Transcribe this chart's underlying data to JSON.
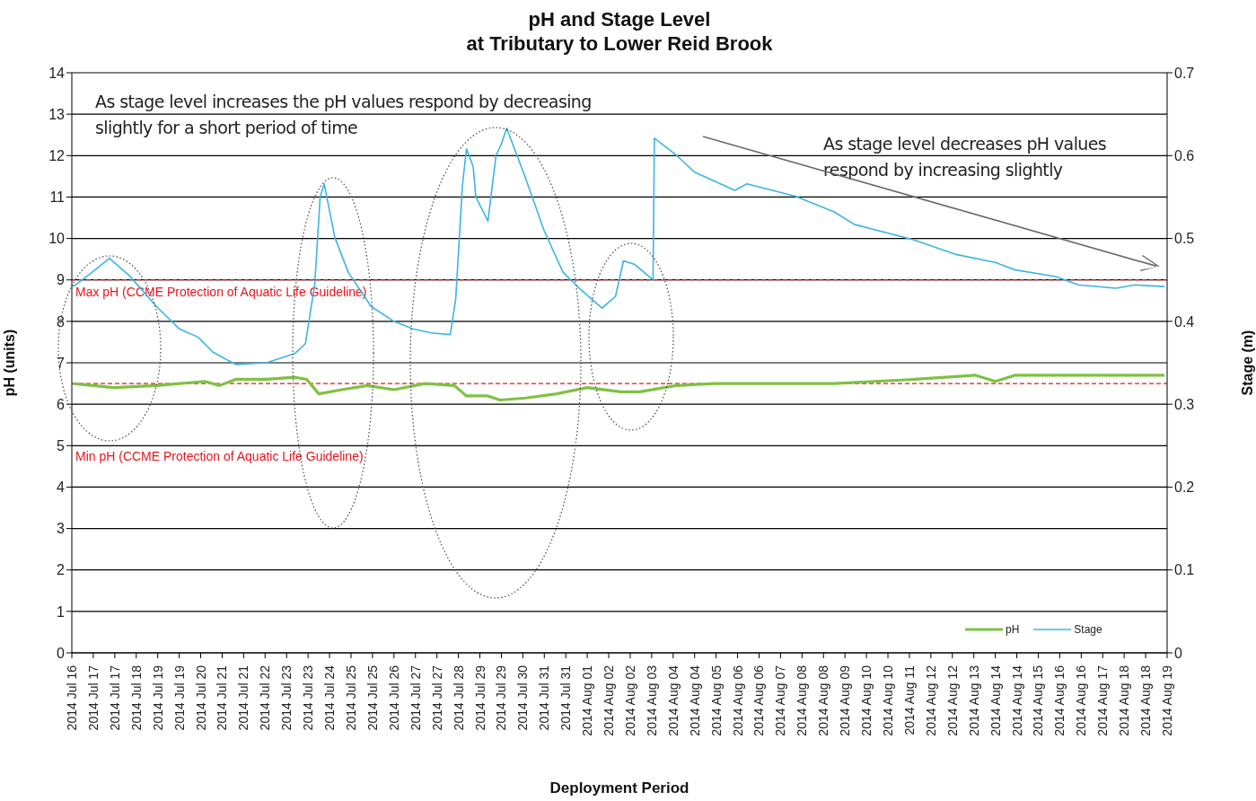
{
  "chart_data": {
    "type": "line",
    "title": "pH and Stage Level\nat Tributary to Lower Reid Brook",
    "xlabel": "Deployment Period",
    "ylabel": "pH (units)",
    "y2label": "Stage (m)",
    "annotations": [
      "As stage level increases the pH values respond by decreasing slightly for a short period of time",
      "As stage level decreases pH values respond by increasing slightly"
    ],
    "series": [
      {
        "name": "pH",
        "color": "#7dc242",
        "x": [
          "2014-07-16T13:00",
          "2014-07-17T19:00",
          "2014-07-19T03:00",
          "2014-07-20T15:00",
          "2014-07-21T02:00",
          "2014-07-21T14:00",
          "2014-07-22T13:00",
          "2014-07-23T10:00",
          "2014-07-23T19:00",
          "2014-07-24T04:00",
          "2014-07-24T21:00",
          "2014-07-25T16:00",
          "2014-07-26T12:00",
          "2014-07-27T11:00",
          "2014-07-28T09:00",
          "2014-07-28T18:00",
          "2014-07-29T10:00",
          "2014-07-29T19:00",
          "2014-07-30T14:00",
          "2014-07-31T13:00",
          "2014-08-01T12:00",
          "2014-08-02T13:00",
          "2014-08-03T03:00",
          "2014-08-04T06:00",
          "2014-08-05T11:00",
          "2014-08-07T08:00",
          "2014-08-09T04:00",
          "2014-08-10T10:00",
          "2014-08-11T16:00",
          "2014-08-13T13:00",
          "2014-08-14T04:00",
          "2014-08-14T19:00",
          "2014-08-16T16:00",
          "2014-08-17T22:00",
          "2014-08-19T10:00"
        ],
        "values": [
          6.5,
          6.4,
          6.45,
          6.55,
          6.45,
          6.6,
          6.6,
          6.65,
          6.6,
          6.25,
          6.35,
          6.45,
          6.35,
          6.5,
          6.45,
          6.2,
          6.2,
          6.1,
          6.15,
          6.25,
          6.4,
          6.3,
          6.3,
          6.45,
          6.5,
          6.5,
          6.5,
          6.55,
          6.6,
          6.7,
          6.55,
          6.7,
          6.7,
          6.7,
          6.7
        ]
      },
      {
        "name": "Stage",
        "color": "#3bb5e3",
        "axis": "y2",
        "x": [
          "2014-07-16T12:00",
          "2014-07-16T14:00",
          "2014-07-17T03:00",
          "2014-07-17T16:00",
          "2014-07-18T07:00",
          "2014-07-19T03:00",
          "2014-07-19T20:00",
          "2014-07-20T10:00",
          "2014-07-20T21:00",
          "2014-07-21T14:00",
          "2014-07-22T13:00",
          "2014-07-23T10:00",
          "2014-07-23T18:00",
          "2014-07-24T01:00",
          "2014-07-24T05:00",
          "2014-07-24T08:00",
          "2014-07-24T16:00",
          "2014-07-25T02:00",
          "2014-07-25T19:00",
          "2014-07-26T12:00",
          "2014-07-27T02:00",
          "2014-07-27T16:00",
          "2014-07-28T06:00",
          "2014-07-28T10:00",
          "2014-07-28T15:00",
          "2014-07-28T18:00",
          "2014-07-28T23:00",
          "2014-07-29T01:00",
          "2014-07-29T10:00",
          "2014-07-29T16:00",
          "2014-07-29T20:00",
          "2014-07-30T00:00",
          "2014-07-30T14:00",
          "2014-07-31T04:00",
          "2014-07-31T18:00",
          "2014-08-01T08:00",
          "2014-08-01T23:00",
          "2014-08-02T09:00",
          "2014-08-02T15:00",
          "2014-08-02T23:00",
          "2014-08-03T13:00",
          "2014-08-03T14:00",
          "2014-08-04T06:00",
          "2014-08-04T20:00",
          "2014-08-06T02:00",
          "2014-08-06T11:00",
          "2014-08-07T23:00",
          "2014-08-09T04:00",
          "2014-08-09T19:00",
          "2014-08-11T16:00",
          "2014-08-12T22:00",
          "2014-08-14T04:00",
          "2014-08-14T19:00",
          "2014-08-16T01:00",
          "2014-08-16T18:00",
          "2014-08-17T22:00",
          "2014-08-18T12:00",
          "2014-08-19T10:00"
        ],
        "values": [
          0.443,
          0.443,
          0.459,
          0.476,
          0.455,
          0.418,
          0.391,
          0.381,
          0.363,
          0.348,
          0.35,
          0.361,
          0.373,
          0.445,
          0.55,
          0.566,
          0.501,
          0.459,
          0.418,
          0.4,
          0.391,
          0.386,
          0.384,
          0.427,
          0.564,
          0.608,
          0.587,
          0.55,
          0.521,
          0.6,
          0.614,
          0.633,
          0.573,
          0.509,
          0.459,
          0.437,
          0.416,
          0.43,
          0.473,
          0.469,
          0.45,
          0.621,
          0.601,
          0.58,
          0.558,
          0.566,
          0.551,
          0.532,
          0.517,
          0.498,
          0.481,
          0.471,
          0.462,
          0.454,
          0.444,
          0.44,
          0.444,
          0.442
        ]
      }
    ],
    "ylim": [
      0,
      14
    ],
    "yticks": [
      0,
      1,
      2,
      3,
      4,
      5,
      6,
      7,
      8,
      9,
      10,
      11,
      12,
      13,
      14
    ],
    "y2lim": [
      0,
      0.7
    ],
    "y2ticks": [
      0,
      0.1,
      0.2,
      0.3,
      0.4,
      0.5,
      0.6,
      0.7
    ],
    "xlim": [
      "2014-07-16T12:00",
      "2014-08-19T12:00"
    ],
    "xticks": [
      {
        "value": "2014-07-16T12:00",
        "label": "2014 Jul 16"
      },
      {
        "value": "2014-07-17T04:00",
        "label": "2014 Jul 17"
      },
      {
        "value": "2014-07-17T20:00",
        "label": "2014 Jul 17"
      },
      {
        "value": "2014-07-18T12:00",
        "label": "2014 Jul 18"
      },
      {
        "value": "2014-07-19T04:00",
        "label": "2014 Jul 19"
      },
      {
        "value": "2014-07-19T20:00",
        "label": "2014 Jul 19"
      },
      {
        "value": "2014-07-20T12:00",
        "label": "2014 Jul 20"
      },
      {
        "value": "2014-07-21T04:00",
        "label": "2014 Jul 21"
      },
      {
        "value": "2014-07-21T20:00",
        "label": "2014 Jul 21"
      },
      {
        "value": "2014-07-22T12:00",
        "label": "2014 Jul 22"
      },
      {
        "value": "2014-07-23T04:00",
        "label": "2014 Jul 23"
      },
      {
        "value": "2014-07-23T20:00",
        "label": "2014 Jul 23"
      },
      {
        "value": "2014-07-24T12:00",
        "label": "2014 Jul 24"
      },
      {
        "value": "2014-07-25T04:00",
        "label": "2014 Jul 25"
      },
      {
        "value": "2014-07-25T20:00",
        "label": "2014 Jul 25"
      },
      {
        "value": "2014-07-26T12:00",
        "label": "2014 Jul 26"
      },
      {
        "value": "2014-07-27T04:00",
        "label": "2014 Jul 27"
      },
      {
        "value": "2014-07-27T20:00",
        "label": "2014 Jul 27"
      },
      {
        "value": "2014-07-28T12:00",
        "label": "2014 Jul 28"
      },
      {
        "value": "2014-07-29T04:00",
        "label": "2014 Jul 29"
      },
      {
        "value": "2014-07-29T20:00",
        "label": "2014 Jul 29"
      },
      {
        "value": "2014-07-30T12:00",
        "label": "2014 Jul 30"
      },
      {
        "value": "2014-07-31T04:00",
        "label": "2014 Jul 31"
      },
      {
        "value": "2014-07-31T20:00",
        "label": "2014 Jul 31"
      },
      {
        "value": "2014-08-01T12:00",
        "label": "2014 Aug 01"
      },
      {
        "value": "2014-08-02T04:00",
        "label": "2014 Aug 02"
      },
      {
        "value": "2014-08-02T20:00",
        "label": "2014 Aug 02"
      },
      {
        "value": "2014-08-03T12:00",
        "label": "2014 Aug 03"
      },
      {
        "value": "2014-08-04T04:00",
        "label": "2014 Aug 04"
      },
      {
        "value": "2014-08-04T20:00",
        "label": "2014 Aug 04"
      },
      {
        "value": "2014-08-05T12:00",
        "label": "2014 Aug 05"
      },
      {
        "value": "2014-08-06T04:00",
        "label": "2014 Aug 06"
      },
      {
        "value": "2014-08-06T20:00",
        "label": "2014 Aug 06"
      },
      {
        "value": "2014-08-07T12:00",
        "label": "2014 Aug 07"
      },
      {
        "value": "2014-08-08T04:00",
        "label": "2014 Aug 08"
      },
      {
        "value": "2014-08-08T20:00",
        "label": "2014 Aug 08"
      },
      {
        "value": "2014-08-09T12:00",
        "label": "2014 Aug 09"
      },
      {
        "value": "2014-08-10T04:00",
        "label": "2014 Aug 10"
      },
      {
        "value": "2014-08-10T20:00",
        "label": "2014 Aug 10"
      },
      {
        "value": "2014-08-11T12:00",
        "label": "2014 Aug 11"
      },
      {
        "value": "2014-08-12T04:00",
        "label": "2014 Aug 12"
      },
      {
        "value": "2014-08-12T20:00",
        "label": "2014 Aug 12"
      },
      {
        "value": "2014-08-13T12:00",
        "label": "2014 Aug 13"
      },
      {
        "value": "2014-08-14T04:00",
        "label": "2014 Aug 14"
      },
      {
        "value": "2014-08-14T20:00",
        "label": "2014 Aug 14"
      },
      {
        "value": "2014-08-15T12:00",
        "label": "2014 Aug 15"
      },
      {
        "value": "2014-08-16T04:00",
        "label": "2014 Aug 16"
      },
      {
        "value": "2014-08-16T20:00",
        "label": "2014 Aug 16"
      },
      {
        "value": "2014-08-17T12:00",
        "label": "2014 Aug 17"
      },
      {
        "value": "2014-08-18T04:00",
        "label": "2014 Aug 18"
      },
      {
        "value": "2014-08-18T20:00",
        "label": "2014 Aug 18"
      },
      {
        "value": "2014-08-19T12:00",
        "label": "2014 Aug 19"
      }
    ],
    "ref_lines": [
      {
        "axis": "y",
        "value": 9,
        "label": "Max pH  (CCME  Protection of Aquatic Life Guideline)",
        "color": "#e8141b",
        "line_style": "dashed"
      },
      {
        "axis": "y",
        "value": 6.5,
        "label": "Min pH  (CCME  Protection of Aquatic Life Guideline)",
        "color": "#e8141b",
        "line_style": "dashed"
      }
    ],
    "grid": "y",
    "legend": "bottom right",
    "marker": "none",
    "line_style": "solid"
  }
}
